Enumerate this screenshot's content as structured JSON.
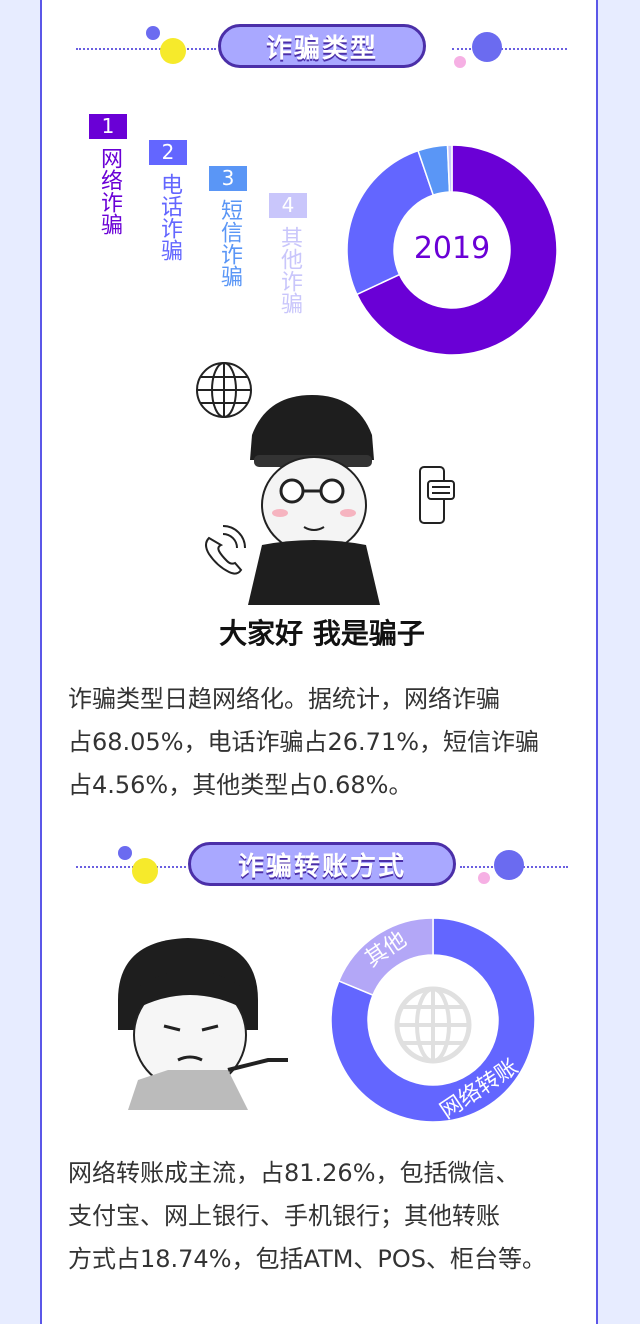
{
  "section1": {
    "title": "诈骗类型"
  },
  "section2": {
    "title": "诈骗转账方式"
  },
  "colors": {
    "purple": "#6a00d6",
    "blue": "#6366ff",
    "sky": "#5a96f6",
    "lavender": "#c9c6fb",
    "gray": "#d8d8d8"
  },
  "chart1": {
    "center_label": "2019",
    "legend": [
      {
        "num": "1",
        "label": "网络诈骗",
        "color": "#6a00d6"
      },
      {
        "num": "2",
        "label": "电话诈骗",
        "color": "#6366ff"
      },
      {
        "num": "3",
        "label": "短信诈骗",
        "color": "#5a96f6"
      },
      {
        "num": "4",
        "label": "其他诈骗",
        "color": "#c9c6fb"
      }
    ]
  },
  "chart_data": [
    {
      "type": "pie",
      "title": "2019",
      "categories": [
        "网络诈骗",
        "电话诈骗",
        "短信诈骗",
        "其他诈骗"
      ],
      "values": [
        68.05,
        26.71,
        4.56,
        0.68
      ],
      "colors": [
        "#6a00d6",
        "#6366ff",
        "#5a96f6",
        "#c9c6fb"
      ]
    },
    {
      "type": "pie",
      "categories": [
        "网络转账",
        "其他"
      ],
      "values": [
        81.26,
        18.74
      ],
      "colors": [
        "#6366ff",
        "#b3a7f7"
      ]
    }
  ],
  "meme": {
    "caption": "大家好 我是骗子"
  },
  "para1": {
    "line1": "诈骗类型日趋网络化。据统计，网络诈骗",
    "line2": "占68.05%，电话诈骗占26.71%，短信诈骗",
    "line3": "占4.56%，其他类型占0.68%。"
  },
  "para2": {
    "line1": "网络转账成主流，占81.26%，包括微信、",
    "line2": "支付宝、网上银行、手机银行；其他转账",
    "line3": "方式占18.74%，包括ATM、POS、柜台等。"
  },
  "icons": [
    "globe-icon",
    "phone-icon",
    "smartphone-message-icon"
  ]
}
